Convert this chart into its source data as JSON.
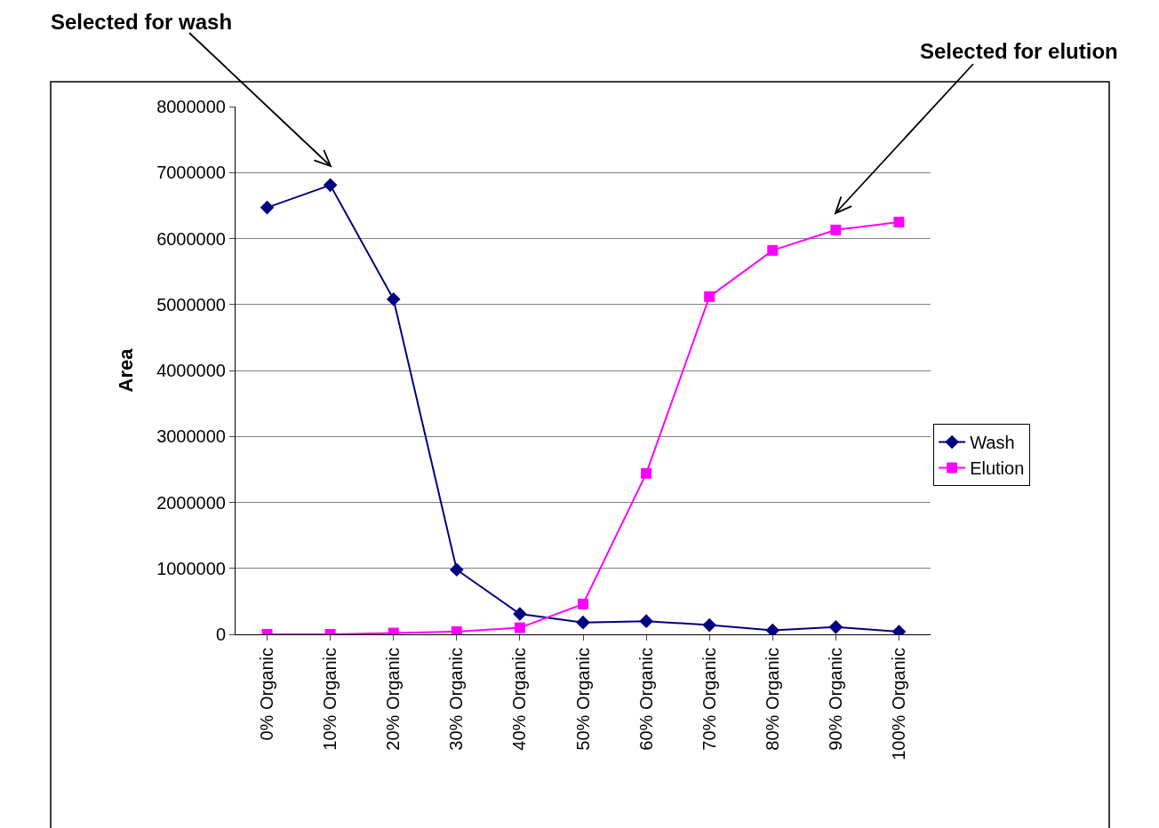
{
  "chart_data": {
    "type": "line",
    "ylabel": "Area",
    "categories": [
      "0% Organic",
      "10% Organic",
      "20% Organic",
      "30% Organic",
      "40% Organic",
      "50% Organic",
      "60% Organic",
      "70% Organic",
      "80% Organic",
      "90% Organic",
      "100% Organic"
    ],
    "series": [
      {
        "name": "Wash",
        "color": "#000080",
        "marker": "diamond",
        "values": [
          6470000,
          6810000,
          5080000,
          980000,
          310000,
          180000,
          200000,
          140000,
          60000,
          110000,
          40000
        ]
      },
      {
        "name": "Elution",
        "color": "#ff00ff",
        "marker": "square",
        "values": [
          0,
          0,
          20000,
          40000,
          100000,
          460000,
          2440000,
          5120000,
          5820000,
          6130000,
          6250000
        ]
      }
    ],
    "ylim": [
      0,
      8000000
    ],
    "yticks": [
      0,
      1000000,
      2000000,
      3000000,
      4000000,
      5000000,
      6000000,
      7000000,
      8000000
    ],
    "grid": "y",
    "legend": "right",
    "line_style": "solid",
    "annotations": [
      "Selected for wash",
      "Selected for elution"
    ]
  }
}
